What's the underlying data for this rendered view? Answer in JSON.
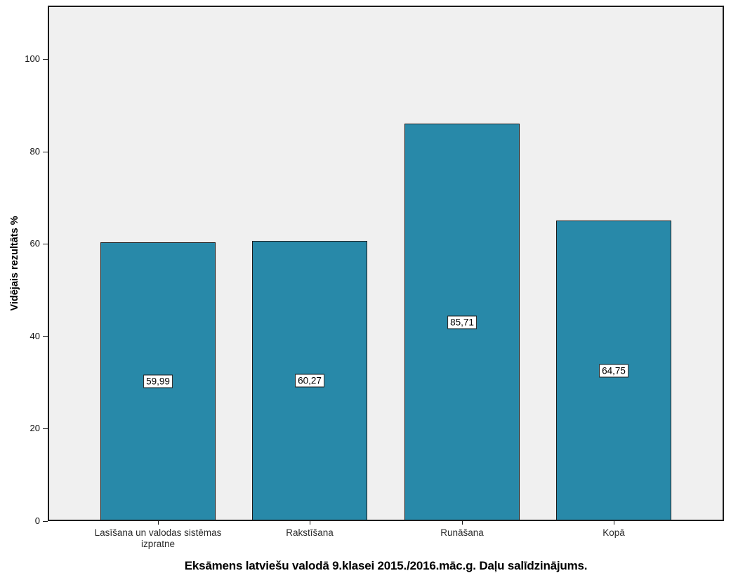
{
  "chart_data": {
    "type": "bar",
    "title": "Eksāmens latviešu valodā 9.klasei 2015./2016.māc.g. Daļu salīdzinājums.",
    "ylabel": "Vidējais rezultāts %",
    "xlabel": "",
    "categories": [
      "Lasīšana un valodas sistēmas izpratne",
      "Rakstīšana",
      "Runāšana",
      "Kopā"
    ],
    "values": [
      59.99,
      60.27,
      85.71,
      64.75
    ],
    "value_labels": [
      "59,99",
      "60,27",
      "85,71",
      "64,75"
    ],
    "yticks": [
      0,
      20,
      40,
      60,
      80,
      100
    ],
    "ytick_labels": [
      "0",
      "20",
      "40",
      "60",
      "80",
      "100"
    ],
    "ylim": [
      0,
      111.5
    ],
    "grid": false,
    "legend_position": "none",
    "colors": {
      "bar_fill": "#2889a9",
      "bar_border": "#1c1c1c",
      "plot_background": "#f0f0f0",
      "figure_background": "#ffffff",
      "value_label_background": "#ffffff"
    }
  }
}
